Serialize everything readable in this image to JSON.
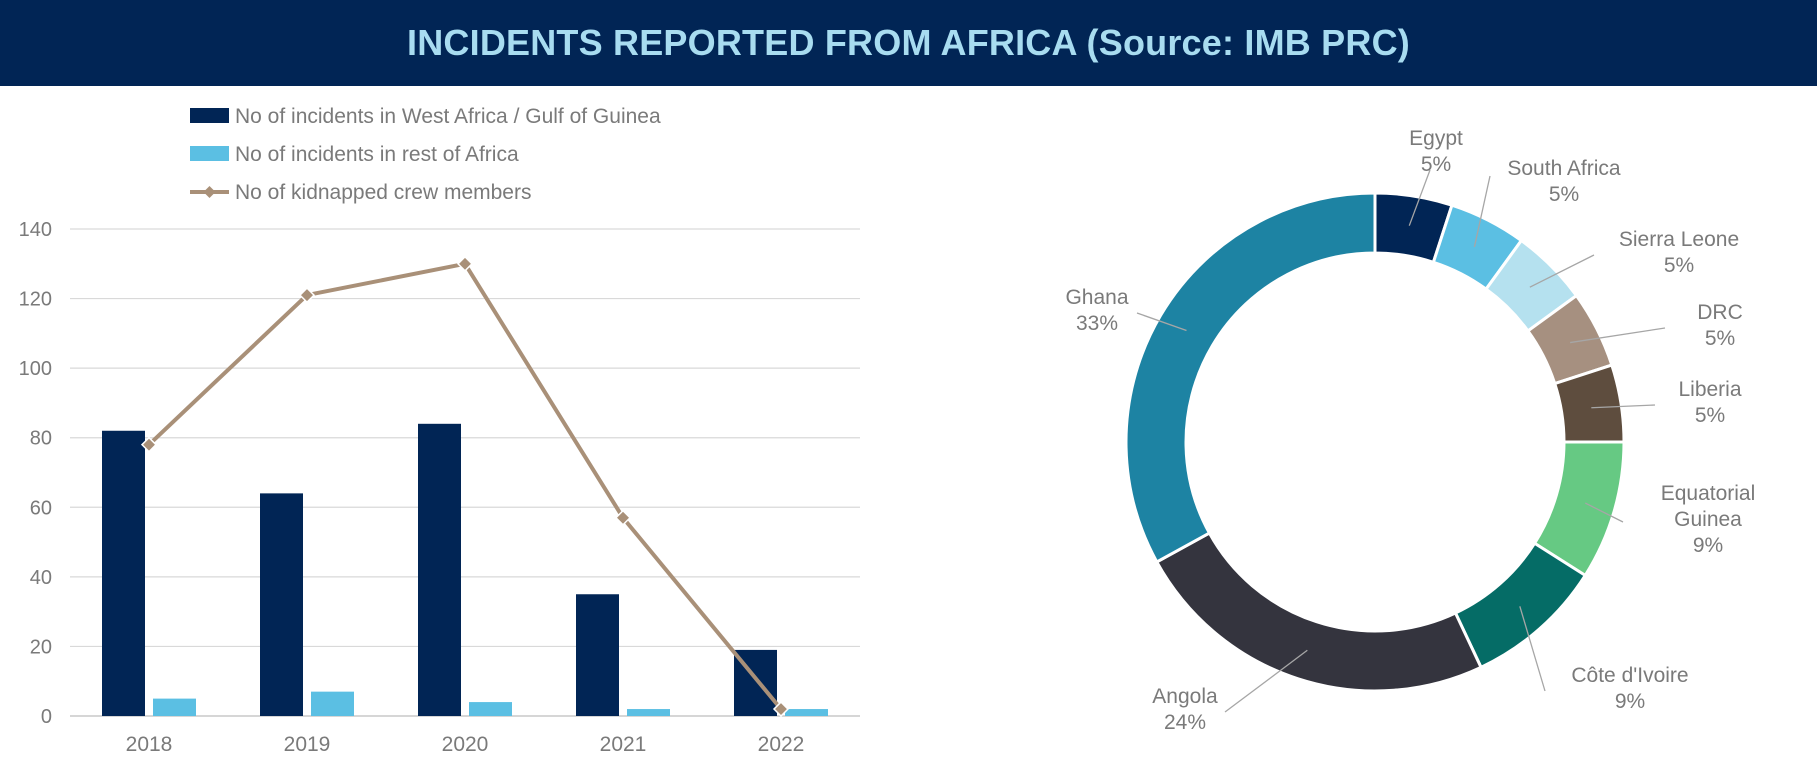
{
  "banner": {
    "title": "INCIDENTS REPORTED FROM AFRICA (Source: IMB PRC)"
  },
  "chart_data": [
    {
      "type": "bar",
      "categories": [
        "2018",
        "2019",
        "2020",
        "2021",
        "2022"
      ],
      "series": [
        {
          "name": "No of incidents in West Africa / Gulf of Guinea",
          "kind": "bar",
          "color": "#012555",
          "values": [
            82,
            64,
            84,
            35,
            19
          ]
        },
        {
          "name": "No of incidents in rest of Africa",
          "kind": "bar",
          "color": "#5bbfe3",
          "values": [
            5,
            7,
            4,
            2,
            2
          ]
        },
        {
          "name": "No of kidnapped crew members",
          "kind": "line",
          "color": "#a99078",
          "marker": "diamond",
          "values": [
            78,
            121,
            130,
            57,
            2
          ]
        }
      ],
      "ylim": [
        0,
        140
      ],
      "yticks": [
        0,
        20,
        40,
        60,
        80,
        100,
        120,
        140
      ],
      "grid": true,
      "legend": "top-left"
    },
    {
      "type": "pie",
      "variant": "donut",
      "slices": [
        {
          "label": "Egypt",
          "lines": [
            "Egypt"
          ],
          "value": 5,
          "pct": "5%",
          "color": "#012555"
        },
        {
          "label": "South Africa",
          "lines": [
            "South Africa"
          ],
          "value": 5,
          "pct": "5%",
          "color": "#5bbfe3"
        },
        {
          "label": "Sierra Leone",
          "lines": [
            "Sierra Leone"
          ],
          "value": 5,
          "pct": "5%",
          "color": "#b5e1ef"
        },
        {
          "label": "DRC",
          "lines": [
            "DRC"
          ],
          "value": 5,
          "pct": "5%",
          "color": "#a69080"
        },
        {
          "label": "Liberia",
          "lines": [
            "Liberia"
          ],
          "value": 5,
          "pct": "5%",
          "color": "#5e4d3e"
        },
        {
          "label": "Equatorial Guinea",
          "lines": [
            "Equatorial",
            "Guinea"
          ],
          "value": 9,
          "pct": "9%",
          "color": "#66c983"
        },
        {
          "label": "Côte d'Ivoire",
          "lines": [
            "Côte d'Ivoire"
          ],
          "value": 9,
          "pct": "9%",
          "color": "#056c66"
        },
        {
          "label": "Angola",
          "lines": [
            "Angola"
          ],
          "value": 24,
          "pct": "24%",
          "color": "#34343e"
        },
        {
          "label": "Ghana",
          "lines": [
            "Ghana"
          ],
          "value": 33,
          "pct": "33%",
          "color": "#1d83a3"
        }
      ]
    }
  ]
}
